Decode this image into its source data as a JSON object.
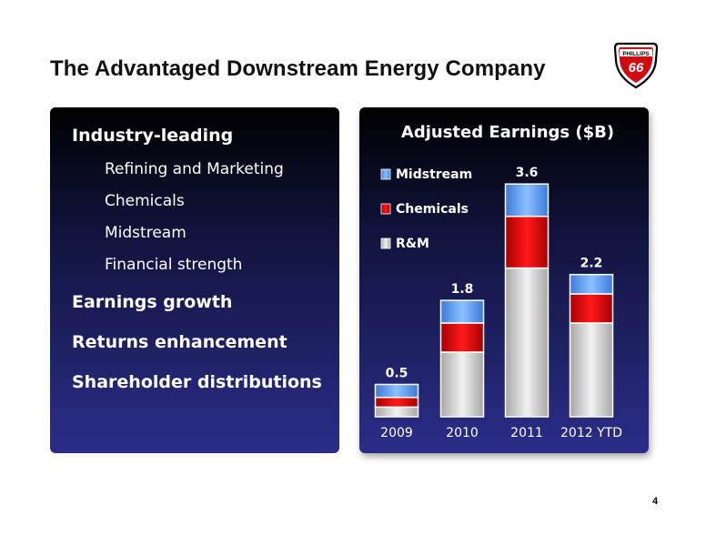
{
  "page": {
    "title": "The Advantaged Downstream Energy Company",
    "logo_text": "PHILLIPS 66",
    "page_number": "4"
  },
  "bullets": [
    {
      "text": "Industry-leading",
      "level": 1
    },
    {
      "text": "Refining and Marketing",
      "level": 2
    },
    {
      "text": "Chemicals",
      "level": 2
    },
    {
      "text": "Midstream",
      "level": 2
    },
    {
      "text": "Financial strength",
      "level": 2
    },
    {
      "text": "Earnings growth",
      "level": 1
    },
    {
      "text": "Returns enhancement",
      "level": 1
    },
    {
      "text": "Shareholder distributions",
      "level": 1
    }
  ],
  "chart_data": {
    "type": "bar",
    "stacked": true,
    "title": "Adjusted Earnings ($B)",
    "categories": [
      "2009",
      "2010",
      "2011",
      "2012 YTD"
    ],
    "series": [
      {
        "name": "R&M",
        "values": [
          0.15,
          1.0,
          2.3,
          1.45
        ],
        "color": "#d9d9d9"
      },
      {
        "name": "Chemicals",
        "values": [
          0.15,
          0.45,
          0.8,
          0.45
        ],
        "color": "#e00000"
      },
      {
        "name": "Midstream",
        "values": [
          0.2,
          0.35,
          0.5,
          0.3
        ],
        "color": "#5b9bf0"
      }
    ],
    "totals": [
      "0.5",
      "1.8",
      "3.6",
      "2.2"
    ],
    "ylim": [
      0,
      3.8
    ],
    "legend_position": "top-left",
    "grid": false
  }
}
